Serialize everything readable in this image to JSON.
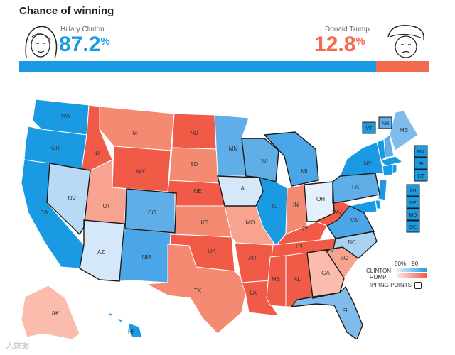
{
  "title": "Chance of winning",
  "clinton": {
    "name": "Hillary Clinton",
    "pct": "87.2",
    "pct_sign": "%",
    "share": 0.872,
    "color": "#1a9ae3"
  },
  "trump": {
    "name": "Donald Trump",
    "pct": "12.8",
    "pct_sign": "%",
    "share": 0.128,
    "color": "#f26b51"
  },
  "legend": {
    "low": "50%",
    "high": "90",
    "clinton": "CLINTON",
    "trump": "TRUMP",
    "tipping": "TIPPING POINTS"
  },
  "watermark": "大数据",
  "states": {
    "WA": "#1a9ae3",
    "OR": "#1a9ae3",
    "CA": "#1a9ae3",
    "NV": "#b9daf5",
    "ID": "#f05a47",
    "MT": "#f58a73",
    "WY": "#f05a47",
    "UT": "#f7a38f",
    "AZ": "#d4e8f9",
    "CO": "#5faee8",
    "NM": "#4aa6e6",
    "ND": "#f05a47",
    "SD": "#f58a73",
    "NE": "#f05a47",
    "KS": "#f58a73",
    "OK": "#f05a47",
    "TX": "#f58a73",
    "MN": "#5faee8",
    "IA": "#d4e8f9",
    "MO": "#f7a38f",
    "AR": "#f05a47",
    "LA": "#f05a47",
    "WI": "#5faee8",
    "IL": "#1a9ae3",
    "MI": "#4aa6e6",
    "IN": "#f58a73",
    "OH": "#e4f0fb",
    "KY": "#f05a47",
    "TN": "#f05a47",
    "MS": "#f05a47",
    "AL": "#f05a47",
    "GA": "#fbbcae",
    "FL": "#7fbcec",
    "SC": "#f7a38f",
    "NC": "#a9d2f1",
    "VA": "#4aa6e6",
    "WV": "#f05a47",
    "PA": "#5faee8",
    "NY": "#1a9ae3",
    "ME": "#7fbcec",
    "AK": "#fbbcae",
    "HI": "#1a9ae3",
    "VT": "#1a9ae3",
    "NH": "#5faee8",
    "MA": "#1a9ae3",
    "RI": "#1a9ae3",
    "CT": "#1a9ae3",
    "NJ": "#1a9ae3",
    "DE": "#1a9ae3",
    "MD": "#1a9ae3",
    "DC": "#1a9ae3"
  }
}
